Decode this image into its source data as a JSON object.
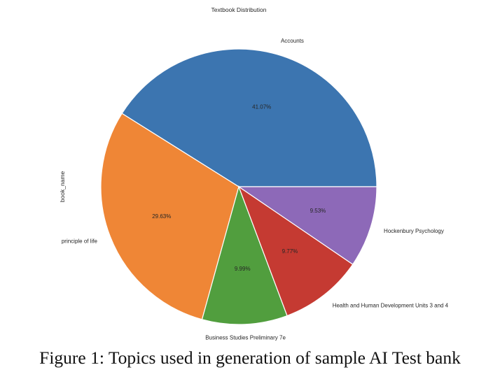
{
  "chart_data": {
    "type": "pie",
    "title": "Textbook Distribution",
    "ylabel": "book_name",
    "slices": [
      {
        "label": "Accounts",
        "value": 41.07,
        "pct_label": "41.07%",
        "color": "#3c75b0"
      },
      {
        "label": "principle of life",
        "value": 29.63,
        "pct_label": "29.63%",
        "color": "#ef8636"
      },
      {
        "label": "Business Studies Preliminary 7e",
        "value": 9.99,
        "pct_label": "9.99%",
        "color": "#519e3e"
      },
      {
        "label": "Health and Human Development Units 3 and 4",
        "value": 9.77,
        "pct_label": "9.77%",
        "color": "#c53a32"
      },
      {
        "label": "Hockenbury Psychology",
        "value": 9.53,
        "pct_label": "9.53%",
        "color": "#8d69b8"
      }
    ],
    "start_angle": "3 o'clock",
    "direction": "counterclockwise",
    "legend": "none"
  },
  "caption": "Figure 1: Topics used in generation of sample AI Test bank"
}
